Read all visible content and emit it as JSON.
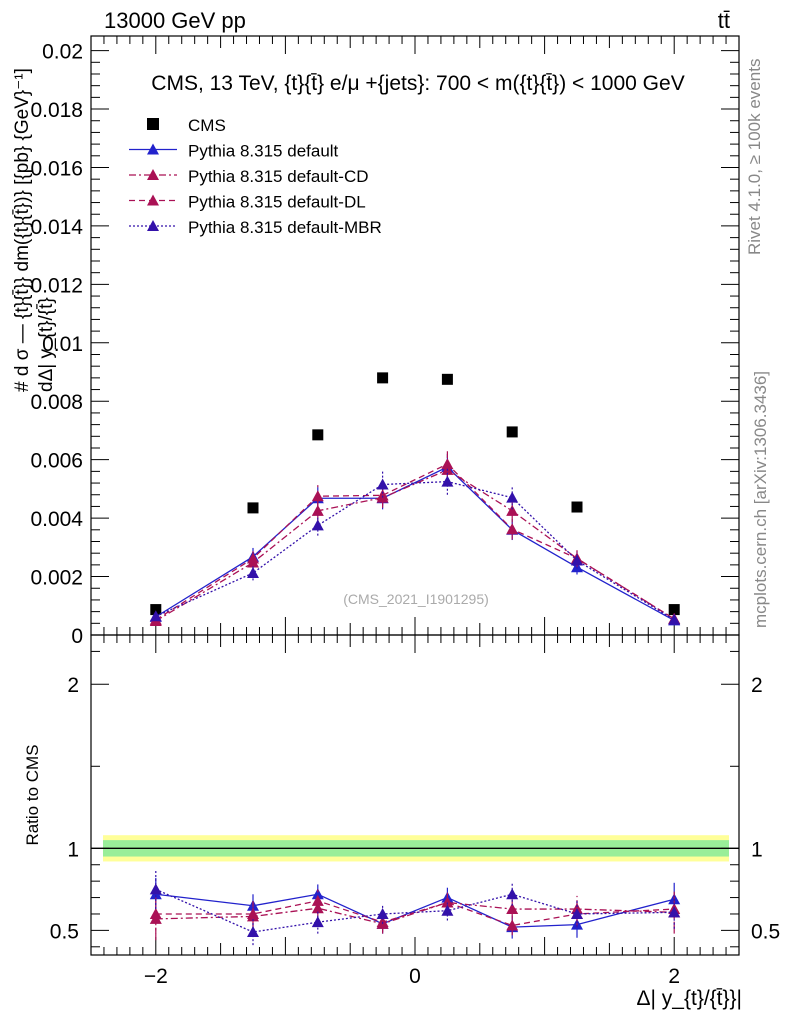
{
  "header": {
    "energy_label": "13000 GeV pp",
    "process_label": "tt̄"
  },
  "sidebar": {
    "rivet_label": "Rivet 4.1.0, ≥ 100k events",
    "mcplots_label": "mcplots.cern.ch [arXiv:1306.3436]"
  },
  "chart_data": [
    {
      "type": "scatter",
      "panel": "main",
      "title": "CMS, 13 TeV, {t}{t̄} e/μ +{jets}: 700 < m({t}{t̄}) < 1000 GeV",
      "ylabel_top": "# d σ — {t}{t̄}} dm({t}{t̄})} [{pb} {GeV}⁻¹]",
      "ylabel_bottom": "dΔ| y_{t}/{t̄}",
      "watermark": "(CMS_2021_I1901295)",
      "xlim": [
        -2.5,
        2.5
      ],
      "ylim": [
        0,
        0.0205
      ],
      "yticks": [
        "0",
        "0.002",
        "0.004",
        "0.006",
        "0.008",
        "0.01",
        "0.012",
        "0.014",
        "0.016",
        "0.018",
        "0.02"
      ],
      "x": [
        -2,
        -1.25,
        -0.75,
        -0.25,
        0.25,
        0.75,
        1.25,
        2
      ],
      "series": [
        {
          "name": "CMS",
          "style": "marker-square",
          "color": "#000000",
          "values": [
            0.00087,
            0.00435,
            0.00685,
            0.0088,
            0.00875,
            0.00695,
            0.00438,
            0.00087
          ],
          "errors": [
            0,
            0,
            0,
            0,
            0,
            0,
            0,
            0
          ]
        },
        {
          "name": "Pythia 8.315 default",
          "style": "solid",
          "color": "#2222cc",
          "values": [
            0.00062,
            0.00268,
            0.00468,
            0.00468,
            0.00575,
            0.0036,
            0.00232,
            0.0005
          ],
          "errors": [
            6e-05,
            0.0003,
            0.00038,
            0.00038,
            0.00045,
            0.00035,
            0.00025,
            5e-05
          ]
        },
        {
          "name": "Pythia 8.315 default-CD",
          "style": "dashdot",
          "color": "#aa1155",
          "values": [
            0.00048,
            0.00248,
            0.00425,
            0.0047,
            0.00565,
            0.00425,
            0.00262,
            0.00055
          ],
          "errors": [
            5e-05,
            0.0003,
            0.00035,
            0.00035,
            0.00045,
            0.0004,
            0.00028,
            5e-05
          ]
        },
        {
          "name": "Pythia 8.315 default-DL",
          "style": "dashed",
          "color": "#aa1155",
          "values": [
            0.00052,
            0.00262,
            0.00475,
            0.00478,
            0.00585,
            0.00362,
            0.00262,
            0.00055
          ],
          "errors": [
            5e-05,
            0.0003,
            0.00038,
            0.00035,
            0.00045,
            0.00035,
            0.00028,
            5e-05
          ]
        },
        {
          "name": "Pythia 8.315 default-MBR",
          "style": "dotted",
          "color": "#3311aa",
          "values": [
            0.00064,
            0.00212,
            0.00375,
            0.00515,
            0.00525,
            0.0047,
            0.00255,
            0.00052
          ],
          "errors": [
            6e-05,
            0.00025,
            0.00035,
            0.00045,
            0.00045,
            0.0004,
            0.00028,
            5e-05
          ]
        }
      ]
    },
    {
      "type": "line",
      "panel": "ratio",
      "ylabel": "Ratio to CMS",
      "xlabel": "Δ| y_{t}/{t̄}}|",
      "xlim": [
        -2.5,
        2.5
      ],
      "ylim": [
        0.35,
        2.3
      ],
      "xticks": [
        "−2",
        "0",
        "2"
      ],
      "yticks": [
        "0.5",
        "1",
        "2"
      ],
      "band_inner": [
        0.95,
        1.05
      ],
      "band_outer": [
        0.92,
        1.08
      ],
      "x": [
        -2,
        -1.25,
        -0.75,
        -0.25,
        0.25,
        0.75,
        1.25,
        2
      ],
      "series": [
        {
          "name": "Pythia 8.315 default",
          "style": "solid",
          "color": "#2222cc",
          "values": [
            0.72,
            0.65,
            0.72,
            0.54,
            0.7,
            0.52,
            0.535,
            0.69
          ],
          "errors": [
            0.1,
            0.07,
            0.06,
            0.06,
            0.06,
            0.07,
            0.08,
            0.1
          ]
        },
        {
          "name": "Pythia 8.315 default-CD",
          "style": "dashdot",
          "color": "#aa1155",
          "values": [
            0.57,
            0.585,
            0.635,
            0.54,
            0.67,
            0.63,
            0.63,
            0.61
          ],
          "errors": [
            0.13,
            0.08,
            0.07,
            0.06,
            0.06,
            0.06,
            0.08,
            0.13
          ]
        },
        {
          "name": "Pythia 8.315 default-DL",
          "style": "dashed",
          "color": "#aa1155",
          "values": [
            0.6,
            0.6,
            0.68,
            0.55,
            0.67,
            0.53,
            0.6,
            0.63
          ],
          "errors": [
            0.12,
            0.08,
            0.07,
            0.06,
            0.06,
            0.06,
            0.08,
            0.12
          ]
        },
        {
          "name": "Pythia 8.315 default-MBR",
          "style": "dotted",
          "color": "#3311aa",
          "values": [
            0.75,
            0.49,
            0.55,
            0.6,
            0.62,
            0.72,
            0.6,
            0.61
          ],
          "errors": [
            0.12,
            0.08,
            0.07,
            0.06,
            0.06,
            0.07,
            0.08,
            0.1
          ]
        }
      ]
    }
  ]
}
